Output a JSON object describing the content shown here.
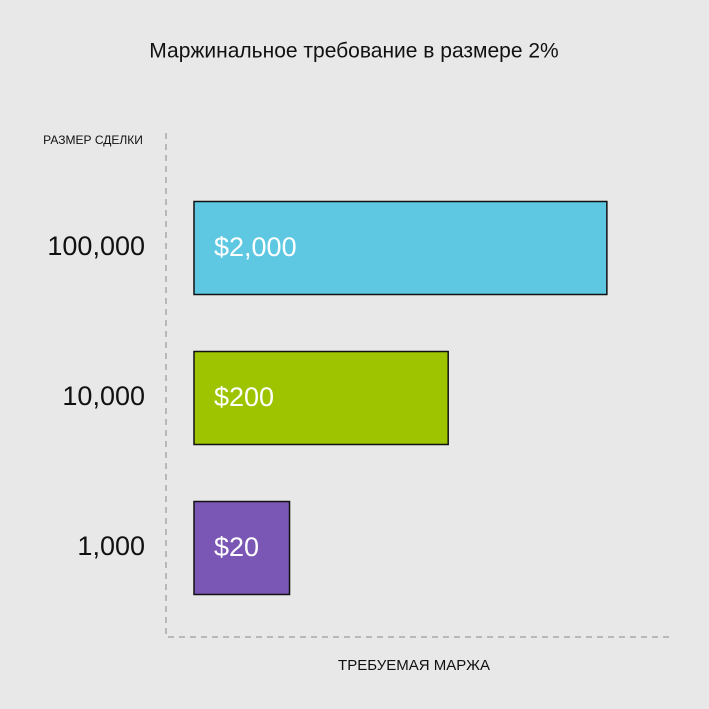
{
  "chart_data": {
    "type": "bar",
    "orientation": "horizontal",
    "title": "Маржинальное требование в размере 2%",
    "y_label": "РАЗМЕР СДЕЛКИ",
    "x_label": "ТРЕБУЕМАЯ МАРЖА",
    "categories": [
      "100,000",
      "10,000",
      "1,000"
    ],
    "values": [
      2000,
      200,
      20
    ],
    "value_labels": [
      "$2,000",
      "$200",
      "$20"
    ],
    "colors": [
      "#5ec8e2",
      "#9ec400",
      "#7a57b4"
    ],
    "log_scale": true,
    "xlim": [
      5,
      5000
    ]
  }
}
